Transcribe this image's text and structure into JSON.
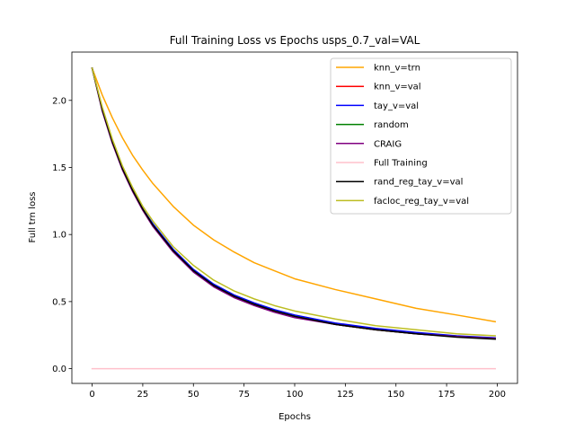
{
  "chart_data": {
    "type": "line",
    "title": "Full Training Loss vs Epochs usps_0.7_val=VAL",
    "xlabel": "Epochs",
    "ylabel": "Full trn loss",
    "xlim": [
      -10,
      210
    ],
    "ylim": [
      -0.11,
      2.36
    ],
    "xticks": [
      0,
      25,
      50,
      75,
      100,
      125,
      150,
      175,
      200
    ],
    "xtick_labels": [
      "0",
      "25",
      "50",
      "75",
      "100",
      "125",
      "150",
      "175",
      "200"
    ],
    "yticks": [
      0.0,
      0.5,
      1.0,
      1.5,
      2.0
    ],
    "ytick_labels": [
      "0.0",
      "0.5",
      "1.0",
      "1.5",
      "2.0"
    ],
    "grid": false,
    "legend_position": "top-right",
    "x": [
      0,
      5,
      10,
      15,
      20,
      25,
      30,
      40,
      50,
      60,
      70,
      80,
      90,
      100,
      120,
      140,
      160,
      180,
      199
    ],
    "series": [
      {
        "name": "knn_v=trn",
        "color": "#FFA500",
        "values": [
          2.24,
          2.04,
          1.87,
          1.72,
          1.59,
          1.48,
          1.38,
          1.21,
          1.07,
          0.96,
          0.87,
          0.79,
          0.73,
          0.67,
          0.59,
          0.52,
          0.45,
          0.4,
          0.35
        ]
      },
      {
        "name": "knn_v=val",
        "color": "#FF0000",
        "values": [
          2.24,
          1.93,
          1.69,
          1.49,
          1.33,
          1.19,
          1.07,
          0.88,
          0.73,
          0.62,
          0.54,
          0.48,
          0.43,
          0.39,
          0.33,
          0.29,
          0.26,
          0.24,
          0.225
        ]
      },
      {
        "name": "tay_v=val",
        "color": "#0000FF",
        "values": [
          2.24,
          1.93,
          1.69,
          1.49,
          1.33,
          1.19,
          1.08,
          0.89,
          0.74,
          0.63,
          0.55,
          0.49,
          0.44,
          0.4,
          0.34,
          0.3,
          0.27,
          0.245,
          0.23
        ]
      },
      {
        "name": "random",
        "color": "#008000",
        "values": [
          2.24,
          1.93,
          1.69,
          1.49,
          1.33,
          1.19,
          1.07,
          0.88,
          0.73,
          0.62,
          0.54,
          0.48,
          0.43,
          0.39,
          0.33,
          0.29,
          0.26,
          0.24,
          0.225
        ]
      },
      {
        "name": "CRAIG",
        "color": "#800080",
        "values": [
          2.24,
          1.92,
          1.68,
          1.48,
          1.32,
          1.18,
          1.06,
          0.87,
          0.72,
          0.61,
          0.53,
          0.47,
          0.42,
          0.38,
          0.33,
          0.29,
          0.26,
          0.24,
          0.225
        ]
      },
      {
        "name": "Full Training",
        "color": "#FFC0CB",
        "values": [
          0.0,
          0.0,
          0.0,
          0.0,
          0.0,
          0.0,
          0.0,
          0.0,
          0.0,
          0.0,
          0.0,
          0.0,
          0.0,
          0.0,
          0.0,
          0.0,
          0.0,
          0.0,
          0.0
        ]
      },
      {
        "name": "rand_reg_tay_v=val",
        "color": "#000000",
        "values": [
          2.24,
          1.93,
          1.69,
          1.49,
          1.33,
          1.19,
          1.07,
          0.88,
          0.73,
          0.62,
          0.54,
          0.48,
          0.43,
          0.39,
          0.33,
          0.29,
          0.26,
          0.235,
          0.22
        ]
      },
      {
        "name": "facloc_reg_tay_v=val",
        "color": "#BCBD22",
        "values": [
          2.24,
          1.95,
          1.71,
          1.51,
          1.35,
          1.21,
          1.1,
          0.91,
          0.77,
          0.66,
          0.58,
          0.52,
          0.47,
          0.43,
          0.37,
          0.32,
          0.29,
          0.26,
          0.245
        ]
      }
    ]
  }
}
